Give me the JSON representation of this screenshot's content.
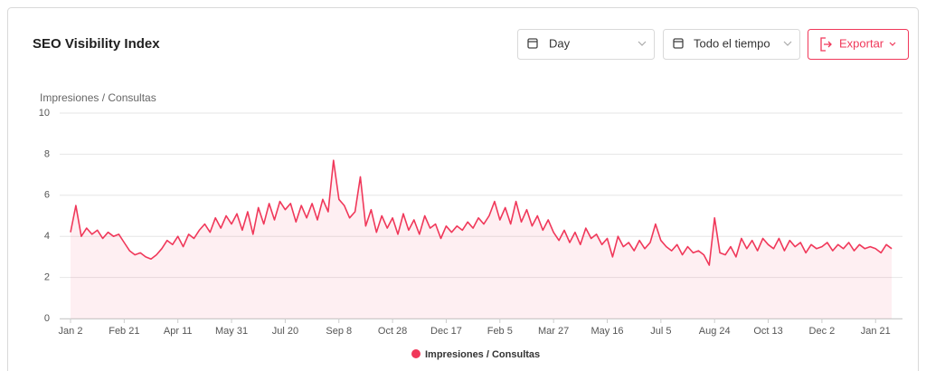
{
  "header": {
    "title": "SEO Visibility Index",
    "controls": [
      "Day",
      "Todo el tiempo"
    ],
    "export": "Exportar"
  },
  "chart_data": {
    "type": "line",
    "y_label": "Impresiones / Consultas",
    "categories": [
      "Jan 2",
      null,
      null,
      null,
      null,
      null,
      null,
      null,
      null,
      null,
      "Feb 21",
      null,
      null,
      null,
      null,
      null,
      null,
      null,
      null,
      null,
      "Apr 11",
      null,
      null,
      null,
      null,
      null,
      null,
      null,
      null,
      null,
      "May 31",
      null,
      null,
      null,
      null,
      null,
      null,
      null,
      null,
      null,
      "Jul 20",
      null,
      null,
      null,
      null,
      null,
      null,
      null,
      null,
      null,
      "Sep 8",
      null,
      null,
      null,
      null,
      null,
      null,
      null,
      null,
      null,
      "Oct 28",
      null,
      null,
      null,
      null,
      null,
      null,
      null,
      null,
      null,
      "Dec 17",
      null,
      null,
      null,
      null,
      null,
      null,
      null,
      null,
      null,
      "Feb 5",
      null,
      null,
      null,
      null,
      null,
      null,
      null,
      null,
      null,
      "Mar 27",
      null,
      null,
      null,
      null,
      null,
      null,
      null,
      null,
      null,
      "May 16",
      null,
      null,
      null,
      null,
      null,
      null,
      null,
      null,
      null,
      "Jul 5",
      null,
      null,
      null,
      null,
      null,
      null,
      null,
      null,
      null,
      "Aug 24",
      null,
      null,
      null,
      null,
      null,
      null,
      null,
      null,
      null,
      "Oct 13",
      null,
      null,
      null,
      null,
      null,
      null,
      null,
      null,
      null,
      "Dec 2",
      null,
      null,
      null,
      null,
      null,
      null,
      null,
      null,
      null,
      "Jan 21",
      null,
      null,
      null
    ],
    "series": [
      {
        "name": "Impresiones / Consultas",
        "color": "#f0385a",
        "values": [
          4.2,
          5.5,
          4.0,
          4.4,
          4.1,
          4.3,
          3.9,
          4.2,
          4.0,
          4.1,
          3.7,
          3.3,
          3.1,
          3.2,
          3.0,
          2.9,
          3.1,
          3.4,
          3.8,
          3.6,
          4.0,
          3.5,
          4.1,
          3.9,
          4.3,
          4.6,
          4.2,
          4.9,
          4.4,
          5.0,
          4.6,
          5.1,
          4.3,
          5.2,
          4.1,
          5.4,
          4.6,
          5.6,
          4.8,
          5.7,
          5.3,
          5.6,
          4.7,
          5.5,
          4.9,
          5.6,
          4.8,
          5.8,
          5.2,
          7.7,
          5.8,
          5.5,
          4.9,
          5.2,
          6.9,
          4.5,
          5.3,
          4.2,
          5.0,
          4.4,
          4.9,
          4.1,
          5.1,
          4.3,
          4.8,
          4.1,
          5.0,
          4.4,
          4.6,
          3.9,
          4.5,
          4.2,
          4.5,
          4.3,
          4.7,
          4.4,
          4.9,
          4.6,
          5.0,
          5.7,
          4.8,
          5.4,
          4.6,
          5.7,
          4.7,
          5.3,
          4.5,
          5.0,
          4.3,
          4.8,
          4.2,
          3.8,
          4.3,
          3.7,
          4.2,
          3.6,
          4.4,
          3.9,
          4.1,
          3.6,
          3.9,
          3.0,
          4.0,
          3.5,
          3.7,
          3.3,
          3.8,
          3.4,
          3.7,
          4.6,
          3.8,
          3.5,
          3.3,
          3.6,
          3.1,
          3.5,
          3.2,
          3.3,
          3.1,
          2.6,
          4.9,
          3.2,
          3.1,
          3.5,
          3.0,
          3.9,
          3.4,
          3.8,
          3.3,
          3.9,
          3.6,
          3.4,
          3.9,
          3.3,
          3.8,
          3.5,
          3.7,
          3.2,
          3.6,
          3.4,
          3.5,
          3.7,
          3.3,
          3.6,
          3.4,
          3.7,
          3.3,
          3.6,
          3.4,
          3.5,
          3.4,
          3.2,
          3.6,
          3.4
        ]
      }
    ],
    "ylim": [
      0,
      10
    ],
    "yticks": [
      0,
      2,
      4,
      6,
      8,
      10
    ],
    "grid": true
  }
}
